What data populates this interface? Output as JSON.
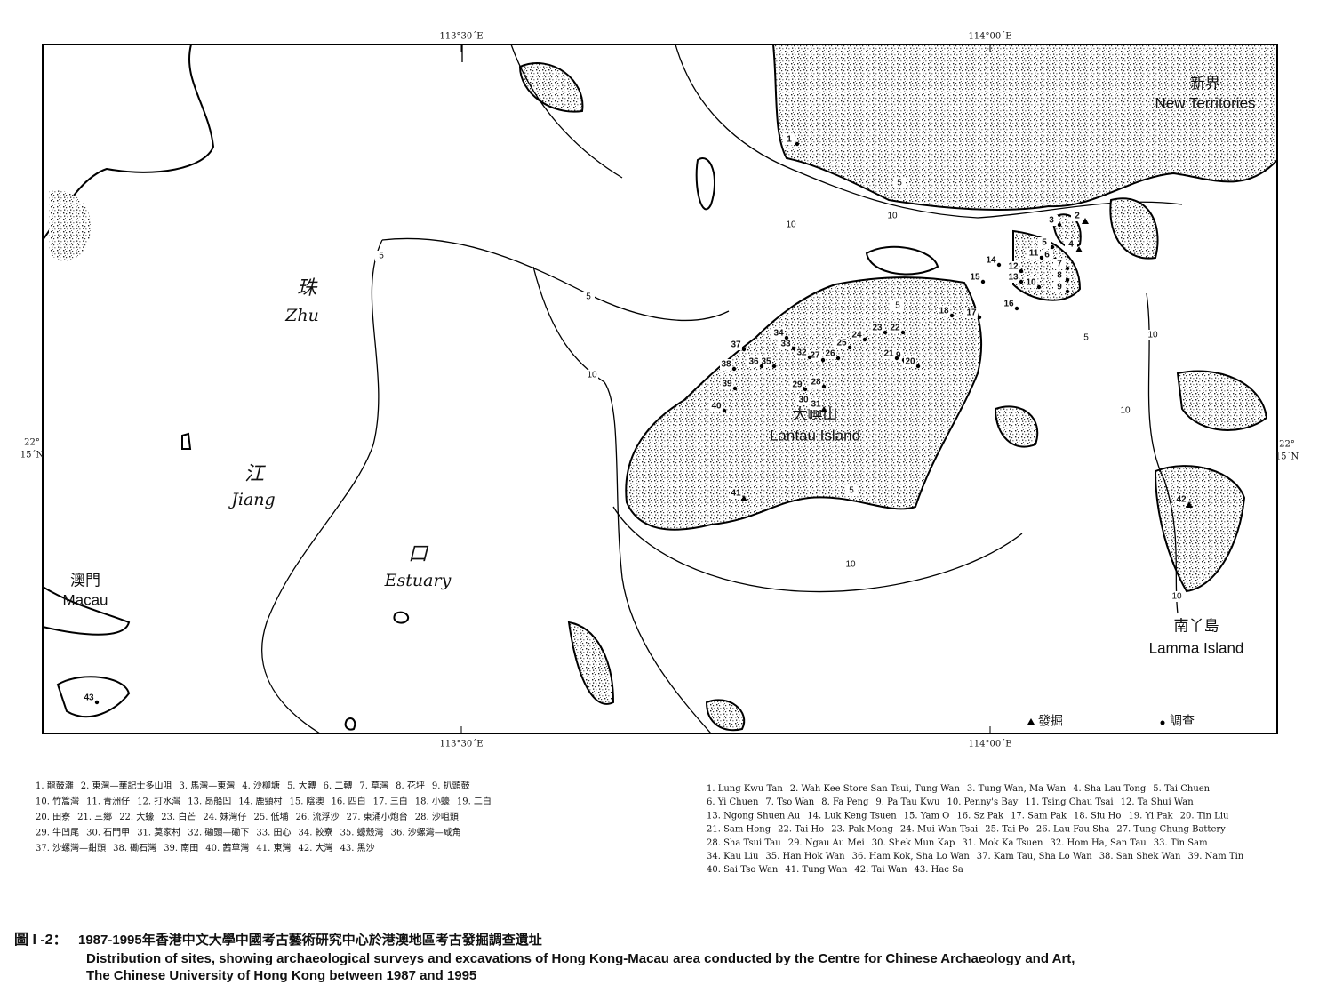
{
  "map": {
    "coordinates": {
      "top": [
        "113°30´E",
        "114°00´E"
      ],
      "bottom": [
        "113°30´E",
        "114°00´E"
      ],
      "left": [
        "22°",
        "15´N"
      ],
      "right": [
        "22°",
        "15´N"
      ]
    },
    "place_names": {
      "zhu_zh": "珠",
      "zhu_en": "Zhu",
      "jiang_zh": "江",
      "jiang_en": "Jiang",
      "estuary_zh": "口",
      "estuary_en": "Estuary",
      "macau_zh": "澳門",
      "macau_en": "Macau",
      "lamma_zh": "南丫島",
      "lamma_en": "Lamma Island",
      "lantau_zh": "大嶼山",
      "lantau_en": "Lantau Island",
      "nt_zh": "新界",
      "nt_en": "New Territories"
    },
    "depth_labels": [
      "5",
      "5",
      "5",
      "5",
      "5",
      "5",
      "10",
      "10",
      "10",
      "10",
      "10",
      "10",
      "10"
    ],
    "sites": [
      "1",
      "2",
      "3",
      "4",
      "5",
      "6",
      "7",
      "8",
      "9",
      "10",
      "11",
      "12",
      "13",
      "14",
      "15",
      "16",
      "17",
      "18",
      "19",
      "20",
      "21",
      "22",
      "23",
      "24",
      "25",
      "26",
      "27",
      "28",
      "29",
      "30",
      "31",
      "32",
      "33",
      "34",
      "35",
      "36",
      "37",
      "38",
      "39",
      "40",
      "41",
      "42",
      "43"
    ],
    "legend": {
      "excavation": "發掘",
      "survey": "調查"
    }
  },
  "site_list_zh": [
    [
      "1. 龍鼓灘",
      "2. 東灣—華記士多山咀",
      "3. 馬灣—東灣",
      "4. 沙柳塘",
      "5. 大轉",
      "6. 二轉",
      "7. 草灣",
      "8. 花坪",
      "9. 扒頭鼓"
    ],
    [
      "10. 竹篙灣",
      "11. 青洲仔",
      "12. 打水灣",
      "13. 昂船凹",
      "14. 鹿頸村",
      "15. 陰澳",
      "16. 四白",
      "17. 三白",
      "18. 小蠔",
      "19. 二白"
    ],
    [
      "20. 田寮",
      "21. 三鄉",
      "22. 大蠔",
      "23. 白芒",
      "24. 妹灣仔",
      "25. 低埔",
      "26. 流浮沙",
      "27. 東涌小炮台",
      "28. 沙咀頭"
    ],
    [
      "29. 牛凹尾",
      "30. 石門甲",
      "31. 莫家村",
      "32. 磡頭—磡下",
      "33. 田心",
      "34. 較寮",
      "35. 蠔殼灣",
      "36. 沙螺灣—咸角"
    ],
    [
      "37. 沙螺灣—鉗頭",
      "38. 磡石灣",
      "39. 南田",
      "40. 茜草灣",
      "41. 東灣",
      "42. 大灣",
      "43. 黑沙"
    ]
  ],
  "site_list_en": [
    [
      "1. Lung Kwu Tan",
      "2. Wah Kee Store San Tsui, Tung Wan",
      "3. Tung Wan, Ma Wan",
      "4. Sha Lau Tong",
      "5. Tai Chuen"
    ],
    [
      "6. Yi Chuen",
      "7. Tso Wan",
      "8. Fa Peng",
      "9. Pa Tau Kwu",
      "10. Penny's Bay",
      "11. Tsing Chau Tsai",
      "12. Ta Shui Wan"
    ],
    [
      "13. Ngong Shuen Au",
      "14. Luk Keng Tsuen",
      "15. Yam O",
      "16. Sz Pak",
      "17. Sam Pak",
      "18. Siu Ho",
      "19. Yi Pak",
      "20. Tin Liu"
    ],
    [
      "21. Sam Hong",
      "22. Tai Ho",
      "23. Pak Mong",
      "24. Mui Wan Tsai",
      "25. Tai Po",
      "26. Lau Fau Sha",
      "27. Tung Chung Battery"
    ],
    [
      "28. Sha Tsui Tau",
      "29. Ngau Au Mei",
      "30. Shek Mun Kap",
      "31. Mok Ka Tsuen",
      "32. Hom Ha, San Tau",
      "33. Tin Sam"
    ],
    [
      "34. Kau Liu",
      "35. Han Hok Wan",
      "36. Ham Kok, Sha Lo Wan",
      "37. Kam Tau, Sha Lo Wan",
      "38. San Shek Wan",
      "39. Nam Tin"
    ],
    [
      "40. Sai Tso Wan",
      "41. Tung Wan",
      "42. Tai Wan",
      "43. Hac Sa"
    ]
  ],
  "caption": {
    "label": "圖 I -2：",
    "zh": "1987-1995年香港中文大學中國考古藝術研究中心於港澳地區考古發掘調查遺址",
    "en": [
      "Distribution of sites, showing archaeological surveys and excavations of Hong Kong-Macau area conducted by the Centre for Chinese Archaeology and Art,",
      "The Chinese University of Hong Kong between 1987 and 1995"
    ]
  }
}
